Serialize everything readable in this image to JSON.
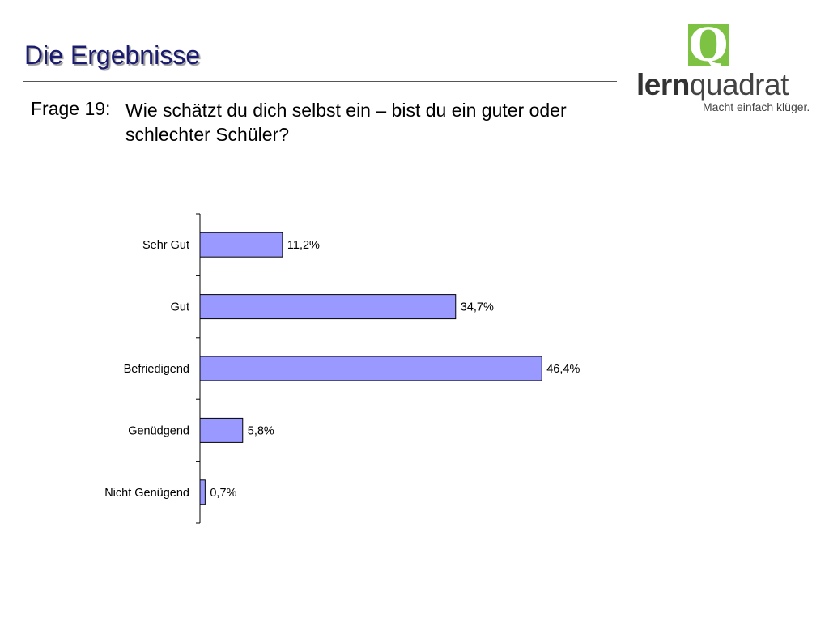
{
  "header": {
    "title": "Die Ergebnisse",
    "question_number": "Frage 19:",
    "question_text": "Wie schätzt du dich selbst ein – bist du ein guter oder schlechter Schüler?"
  },
  "logo": {
    "letter": "Q",
    "word_bold": "lern",
    "word_rest": "quadrat",
    "tagline": "Macht einfach klüger.",
    "colors": {
      "green": "#7dc243",
      "text": "#444444"
    }
  },
  "chart_data": {
    "type": "bar",
    "orientation": "horizontal",
    "categories": [
      "Sehr Gut",
      "Gut",
      "Befriedigend",
      "Genüdgend",
      "Nicht Genügend"
    ],
    "values": [
      11.2,
      34.7,
      46.4,
      5.8,
      0.7
    ],
    "value_labels": [
      "11,2%",
      "34,7%",
      "46,4%",
      "5,8%",
      "0,7%"
    ],
    "xlim": [
      0,
      50
    ],
    "bar_color": "#9999ff",
    "grid": false
  }
}
